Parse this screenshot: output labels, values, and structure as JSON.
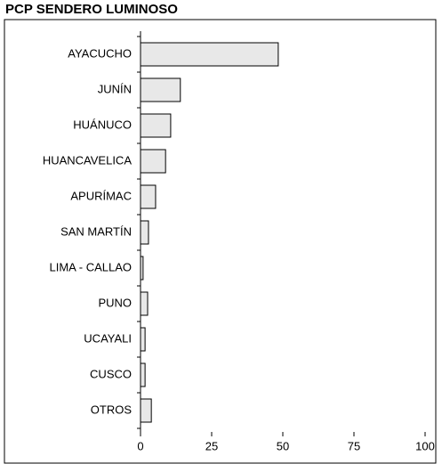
{
  "chart_data": {
    "type": "bar",
    "orientation": "horizontal",
    "title": "PCP SENDERO LUMINOSO",
    "categories": [
      "AYACUCHO",
      "JUNÍN",
      "HUÁNUCO",
      "HUANCAVELICA",
      "APURÍMAC",
      "SAN MARTÍN",
      "LIMA - CALLAO",
      "PUNO",
      "UCAYALI",
      "CUSCO",
      "OTROS"
    ],
    "values": [
      48.4,
      14,
      10.6,
      8.8,
      5.3,
      2.8,
      0.9,
      2.5,
      1.6,
      1.6,
      3.8
    ],
    "color": "#e8e8e8",
    "xlim": [
      0,
      100
    ],
    "xticks": [
      0,
      25,
      50,
      75,
      100
    ],
    "grid": false
  }
}
